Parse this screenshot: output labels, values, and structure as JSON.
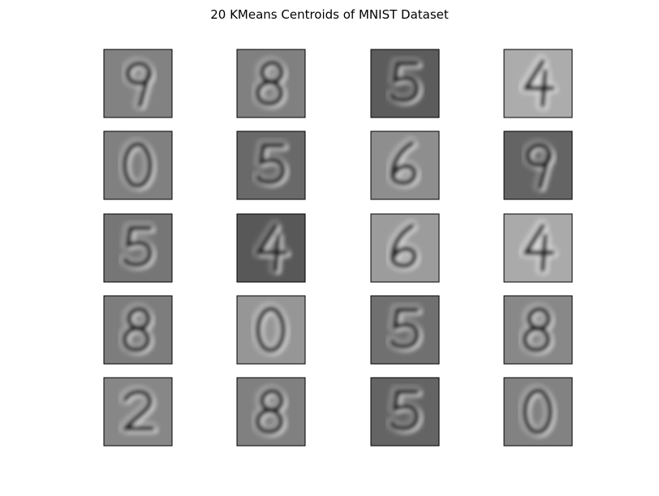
{
  "chart_data": {
    "type": "heatmap",
    "title": "20 KMeans Centroids of MNIST Dataset",
    "layout": {
      "rows": 5,
      "cols": 4
    },
    "axes_ticks": false,
    "colormap": "gray",
    "panels": [
      {
        "index": 1,
        "digit_shape": "9",
        "background_gray": 130
      },
      {
        "index": 2,
        "digit_shape": "8",
        "background_gray": 128
      },
      {
        "index": 3,
        "digit_shape": "5",
        "background_gray": 92
      },
      {
        "index": 4,
        "digit_shape": "4",
        "background_gray": 172
      },
      {
        "index": 5,
        "digit_shape": "0",
        "background_gray": 128
      },
      {
        "index": 6,
        "digit_shape": "5",
        "background_gray": 105
      },
      {
        "index": 7,
        "digit_shape": "6",
        "background_gray": 142
      },
      {
        "index": 8,
        "digit_shape": "9",
        "background_gray": 100
      },
      {
        "index": 9,
        "digit_shape": "5",
        "background_gray": 118
      },
      {
        "index": 10,
        "digit_shape": "4",
        "background_gray": 88
      },
      {
        "index": 11,
        "digit_shape": "6",
        "background_gray": 156
      },
      {
        "index": 12,
        "digit_shape": "4",
        "background_gray": 170
      },
      {
        "index": 13,
        "digit_shape": "8",
        "background_gray": 125
      },
      {
        "index": 14,
        "digit_shape": "0",
        "background_gray": 150
      },
      {
        "index": 15,
        "digit_shape": "5",
        "background_gray": 112
      },
      {
        "index": 16,
        "digit_shape": "8",
        "background_gray": 136
      },
      {
        "index": 17,
        "digit_shape": "2",
        "background_gray": 135
      },
      {
        "index": 18,
        "digit_shape": "8",
        "background_gray": 128
      },
      {
        "index": 19,
        "digit_shape": "5",
        "background_gray": 100
      },
      {
        "index": 20,
        "digit_shape": "0",
        "background_gray": 130
      }
    ]
  }
}
